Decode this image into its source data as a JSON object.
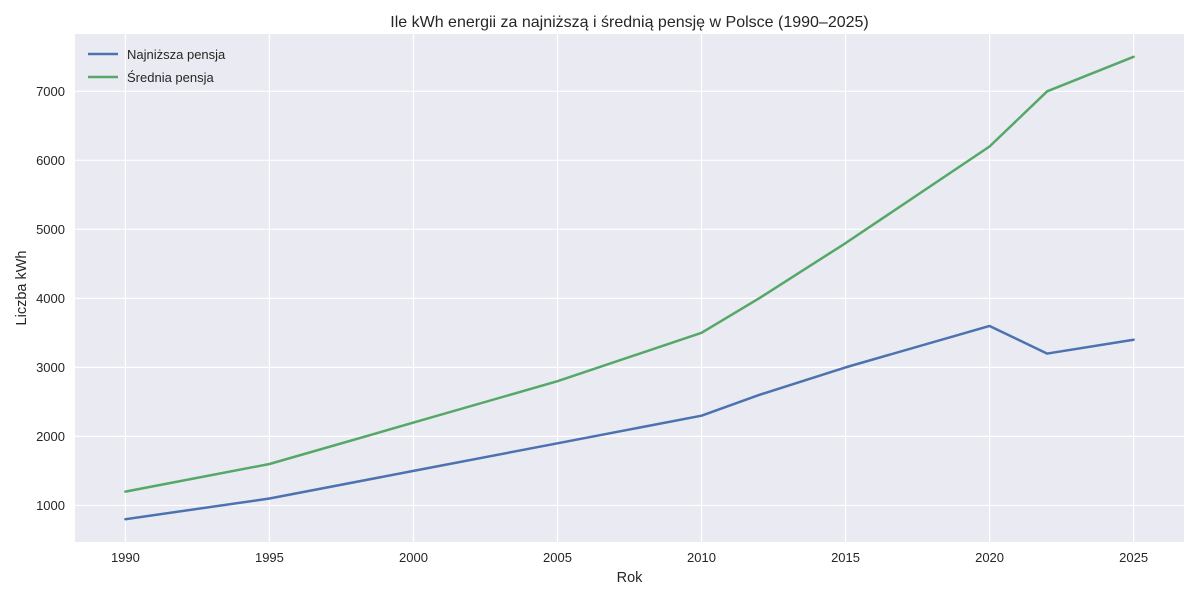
{
  "chart_data": {
    "type": "line",
    "title": "Ile kWh energii za najniższą i średnią pensję w Polsce (1990–2025)",
    "xlabel": "Rok",
    "ylabel": "Liczba kWh",
    "xlim": [
      1988.25,
      2026.75
    ],
    "ylim": [
      470,
      7830
    ],
    "x_ticks": [
      1990,
      1995,
      2000,
      2005,
      2010,
      2015,
      2020,
      2025
    ],
    "y_ticks": [
      1000,
      2000,
      3000,
      4000,
      5000,
      6000,
      7000
    ],
    "x": [
      1990,
      1995,
      2000,
      2005,
      2010,
      2012,
      2015,
      2020,
      2022,
      2025
    ],
    "series": [
      {
        "name": "Najniższa pensja",
        "color": "#4c72b0",
        "values": [
          800,
          1100,
          1500,
          1900,
          2300,
          2600,
          3000,
          3600,
          3200,
          3400
        ]
      },
      {
        "name": "Średnia pensja",
        "color": "#55a868",
        "values": [
          1200,
          1600,
          2200,
          2800,
          3500,
          4000,
          4800,
          6200,
          7000,
          7500
        ]
      }
    ],
    "grid": true,
    "legend_position": "top-left",
    "background_color": "#eaeaf2",
    "grid_color": "#ffffff"
  }
}
